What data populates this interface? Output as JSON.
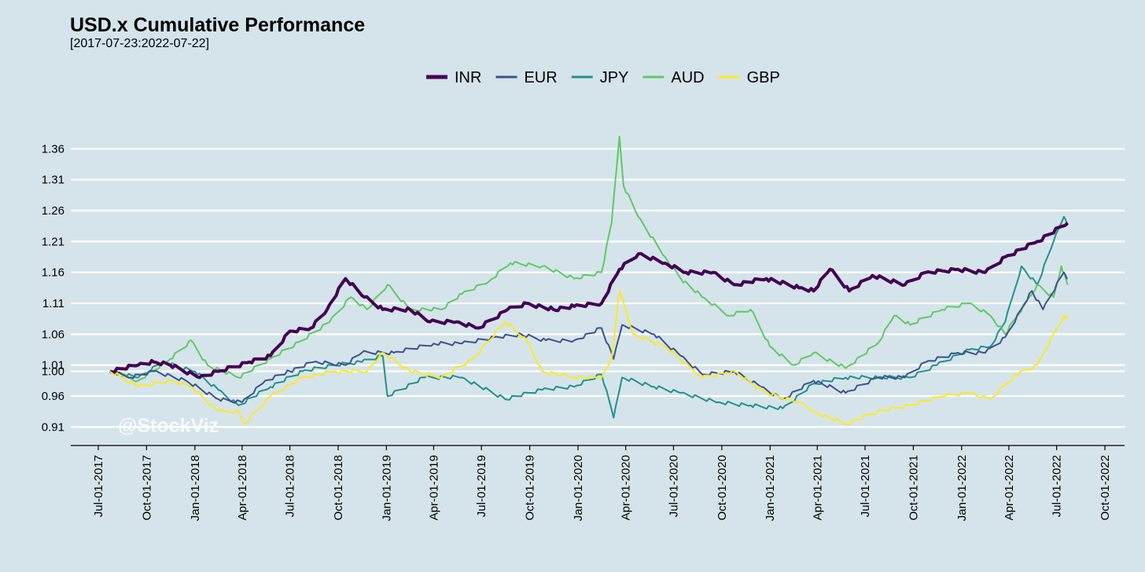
{
  "chart_data": {
    "type": "line",
    "title": "USD.x Cumulative Performance",
    "subtitle": "[2017-07-23:2022-07-22]",
    "watermark": "@StockViz",
    "legend_position": "top",
    "grid": true,
    "ylim": [
      0.88,
      1.41
    ],
    "xlim": [
      "2017-07-01",
      "2022-10-01"
    ],
    "y_ticks": [
      0.91,
      0.96,
      1.0,
      1.01,
      1.06,
      1.11,
      1.16,
      1.21,
      1.26,
      1.31,
      1.36
    ],
    "y_tick_labels": [
      "0.91",
      "0.96",
      "1.00",
      "1.01",
      "1.06",
      "1.11",
      "1.16",
      "1.21",
      "1.26",
      "1.31",
      "1.36"
    ],
    "x_ticks": [
      "2017-07-01",
      "2017-10-01",
      "2018-01-01",
      "2018-04-01",
      "2018-07-01",
      "2018-10-01",
      "2019-01-01",
      "2019-04-01",
      "2019-07-01",
      "2019-10-01",
      "2020-01-01",
      "2020-04-01",
      "2020-07-01",
      "2020-10-01",
      "2021-01-01",
      "2021-04-01",
      "2021-07-01",
      "2021-10-01",
      "2022-01-01",
      "2022-04-01",
      "2022-07-01",
      "2022-10-01"
    ],
    "x_tick_labels": [
      "Jul-01-2017",
      "Oct-01-2017",
      "Jan-01-2018",
      "Apr-01-2018",
      "Jul-01-2018",
      "Oct-01-2018",
      "Jan-01-2019",
      "Apr-01-2019",
      "Jul-01-2019",
      "Oct-01-2019",
      "Jan-01-2020",
      "Apr-01-2020",
      "Jul-01-2020",
      "Oct-01-2020",
      "Jan-01-2021",
      "Apr-01-2021",
      "Jul-01-2021",
      "Oct-01-2021",
      "Jan-01-2022",
      "Apr-01-2022",
      "Jul-01-2022",
      "Oct-01-2022"
    ],
    "series": [
      {
        "name": "INR",
        "color": "#440154",
        "width": 4,
        "points": [
          [
            "2017-07-23",
            1.0
          ],
          [
            "2017-09-15",
            1.01
          ],
          [
            "2017-10-15",
            1.015
          ],
          [
            "2017-11-15",
            1.01
          ],
          [
            "2018-01-10",
            0.99
          ],
          [
            "2018-02-15",
            1.0
          ],
          [
            "2018-04-15",
            1.015
          ],
          [
            "2018-05-25",
            1.025
          ],
          [
            "2018-07-01",
            1.065
          ],
          [
            "2018-08-10",
            1.07
          ],
          [
            "2018-09-10",
            1.1
          ],
          [
            "2018-10-15",
            1.15
          ],
          [
            "2018-11-20",
            1.12
          ],
          [
            "2018-12-25",
            1.1
          ],
          [
            "2019-02-15",
            1.1
          ],
          [
            "2019-03-25",
            1.08
          ],
          [
            "2019-05-15",
            1.08
          ],
          [
            "2019-06-25",
            1.07
          ],
          [
            "2019-08-20",
            1.1
          ],
          [
            "2019-09-25",
            1.11
          ],
          [
            "2019-11-15",
            1.1
          ],
          [
            "2019-12-25",
            1.105
          ],
          [
            "2020-02-15",
            1.11
          ],
          [
            "2020-03-20",
            1.165
          ],
          [
            "2020-04-25",
            1.19
          ],
          [
            "2020-06-15",
            1.175
          ],
          [
            "2020-07-25",
            1.16
          ],
          [
            "2020-09-15",
            1.16
          ],
          [
            "2020-10-25",
            1.14
          ],
          [
            "2020-12-25",
            1.15
          ],
          [
            "2021-02-25",
            1.135
          ],
          [
            "2021-03-25",
            1.13
          ],
          [
            "2021-04-25",
            1.165
          ],
          [
            "2021-06-01",
            1.13
          ],
          [
            "2021-07-15",
            1.155
          ],
          [
            "2021-09-15",
            1.14
          ],
          [
            "2021-10-25",
            1.16
          ],
          [
            "2021-12-25",
            1.165
          ],
          [
            "2022-02-15",
            1.16
          ],
          [
            "2022-03-25",
            1.185
          ],
          [
            "2022-05-25",
            1.21
          ],
          [
            "2022-07-22",
            1.24
          ]
        ]
      },
      {
        "name": "EUR",
        "color": "#3b528b",
        "width": 2,
        "points": [
          [
            "2017-07-23",
            1.0
          ],
          [
            "2017-09-01",
            0.99
          ],
          [
            "2017-10-15",
            1.0
          ],
          [
            "2017-12-15",
            0.985
          ],
          [
            "2018-02-15",
            0.955
          ],
          [
            "2018-04-01",
            0.95
          ],
          [
            "2018-05-15",
            0.985
          ],
          [
            "2018-07-01",
            1.0
          ],
          [
            "2018-08-15",
            1.015
          ],
          [
            "2018-10-15",
            1.01
          ],
          [
            "2018-11-15",
            1.03
          ],
          [
            "2019-01-15",
            1.03
          ],
          [
            "2019-04-01",
            1.045
          ],
          [
            "2019-05-25",
            1.045
          ],
          [
            "2019-07-25",
            1.055
          ],
          [
            "2019-09-15",
            1.06
          ],
          [
            "2019-11-01",
            1.05
          ],
          [
            "2019-12-25",
            1.05
          ],
          [
            "2020-02-15",
            1.07
          ],
          [
            "2020-03-09",
            1.02
          ],
          [
            "2020-03-25",
            1.075
          ],
          [
            "2020-05-25",
            1.06
          ],
          [
            "2020-07-15",
            1.025
          ],
          [
            "2020-08-25",
            0.995
          ],
          [
            "2020-10-25",
            1.0
          ],
          [
            "2020-12-15",
            0.975
          ],
          [
            "2021-01-25",
            0.955
          ],
          [
            "2021-03-25",
            0.985
          ],
          [
            "2021-05-25",
            0.965
          ],
          [
            "2021-07-25",
            0.99
          ],
          [
            "2021-09-15",
            0.99
          ],
          [
            "2021-10-25",
            1.015
          ],
          [
            "2021-12-25",
            1.03
          ],
          [
            "2022-02-15",
            1.03
          ],
          [
            "2022-03-25",
            1.055
          ],
          [
            "2022-05-15",
            1.13
          ],
          [
            "2022-06-05",
            1.1
          ],
          [
            "2022-07-15",
            1.16
          ],
          [
            "2022-07-22",
            1.15
          ]
        ]
      },
      {
        "name": "JPY",
        "color": "#21918c",
        "width": 2,
        "points": [
          [
            "2017-07-23",
            1.0
          ],
          [
            "2017-09-15",
            0.99
          ],
          [
            "2017-11-01",
            1.015
          ],
          [
            "2018-01-01",
            1.0
          ],
          [
            "2018-02-15",
            0.97
          ],
          [
            "2018-03-25",
            0.945
          ],
          [
            "2018-05-25",
            0.975
          ],
          [
            "2018-07-25",
            1.0
          ],
          [
            "2018-09-25",
            1.01
          ],
          [
            "2018-11-15",
            1.015
          ],
          [
            "2018-12-25",
            1.025
          ],
          [
            "2019-01-03",
            0.96
          ],
          [
            "2019-03-15",
            0.99
          ],
          [
            "2019-05-25",
            0.99
          ],
          [
            "2019-08-15",
            0.955
          ],
          [
            "2019-10-25",
            0.97
          ],
          [
            "2019-12-25",
            0.975
          ],
          [
            "2020-02-15",
            0.995
          ],
          [
            "2020-03-09",
            0.925
          ],
          [
            "2020-03-25",
            0.99
          ],
          [
            "2020-05-25",
            0.975
          ],
          [
            "2020-07-15",
            0.965
          ],
          [
            "2020-09-25",
            0.95
          ],
          [
            "2020-11-25",
            0.945
          ],
          [
            "2021-01-25",
            0.94
          ],
          [
            "2021-03-25",
            0.98
          ],
          [
            "2021-05-25",
            0.99
          ],
          [
            "2021-07-25",
            0.99
          ],
          [
            "2021-09-25",
            0.99
          ],
          [
            "2021-11-15",
            1.01
          ],
          [
            "2022-01-15",
            1.035
          ],
          [
            "2022-02-25",
            1.04
          ],
          [
            "2022-03-25",
            1.08
          ],
          [
            "2022-04-25",
            1.17
          ],
          [
            "2022-05-25",
            1.14
          ],
          [
            "2022-06-25",
            1.21
          ],
          [
            "2022-07-15",
            1.25
          ],
          [
            "2022-07-22",
            1.24
          ]
        ]
      },
      {
        "name": "AUD",
        "color": "#5ec962",
        "width": 2,
        "points": [
          [
            "2017-07-23",
            1.0
          ],
          [
            "2017-09-15",
            0.985
          ],
          [
            "2017-11-15",
            1.02
          ],
          [
            "2017-12-25",
            1.05
          ],
          [
            "2018-01-25",
            1.01
          ],
          [
            "2018-03-25",
            0.99
          ],
          [
            "2018-05-25",
            1.02
          ],
          [
            "2018-07-25",
            1.05
          ],
          [
            "2018-09-15",
            1.08
          ],
          [
            "2018-10-25",
            1.12
          ],
          [
            "2018-11-25",
            1.1
          ],
          [
            "2019-01-03",
            1.14
          ],
          [
            "2019-02-15",
            1.1
          ],
          [
            "2019-04-15",
            1.1
          ],
          [
            "2019-05-25",
            1.125
          ],
          [
            "2019-07-15",
            1.145
          ],
          [
            "2019-08-25",
            1.175
          ],
          [
            "2019-10-25",
            1.17
          ],
          [
            "2019-12-25",
            1.15
          ],
          [
            "2020-02-15",
            1.16
          ],
          [
            "2020-03-05",
            1.24
          ],
          [
            "2020-03-20",
            1.38
          ],
          [
            "2020-03-28",
            1.3
          ],
          [
            "2020-04-25",
            1.25
          ],
          [
            "2020-06-15",
            1.185
          ],
          [
            "2020-07-15",
            1.15
          ],
          [
            "2020-08-25",
            1.12
          ],
          [
            "2020-10-15",
            1.09
          ],
          [
            "2020-11-25",
            1.1
          ],
          [
            "2021-01-01",
            1.04
          ],
          [
            "2021-02-15",
            1.01
          ],
          [
            "2021-03-25",
            1.03
          ],
          [
            "2021-05-25",
            1.005
          ],
          [
            "2021-07-25",
            1.045
          ],
          [
            "2021-08-25",
            1.09
          ],
          [
            "2021-09-25",
            1.075
          ],
          [
            "2021-11-25",
            1.1
          ],
          [
            "2022-01-15",
            1.11
          ],
          [
            "2022-02-25",
            1.09
          ],
          [
            "2022-03-25",
            1.06
          ],
          [
            "2022-05-25",
            1.14
          ],
          [
            "2022-06-25",
            1.12
          ],
          [
            "2022-07-10",
            1.17
          ],
          [
            "2022-07-22",
            1.14
          ]
        ]
      },
      {
        "name": "GBP",
        "color": "#fde725",
        "width": 2,
        "points": [
          [
            "2017-07-23",
            1.0
          ],
          [
            "2017-09-15",
            0.975
          ],
          [
            "2017-11-15",
            0.985
          ],
          [
            "2017-12-25",
            0.975
          ],
          [
            "2018-02-15",
            0.935
          ],
          [
            "2018-03-25",
            0.935
          ],
          [
            "2018-04-05",
            0.915
          ],
          [
            "2018-05-25",
            0.96
          ],
          [
            "2018-07-25",
            0.99
          ],
          [
            "2018-09-25",
            1.0
          ],
          [
            "2018-11-25",
            1.0
          ],
          [
            "2018-12-25",
            1.03
          ],
          [
            "2019-02-15",
            1.0
          ],
          [
            "2019-04-15",
            0.99
          ],
          [
            "2019-06-15",
            1.02
          ],
          [
            "2019-08-15",
            1.08
          ],
          [
            "2019-09-25",
            1.05
          ],
          [
            "2019-10-25",
            1.0
          ],
          [
            "2019-12-25",
            0.99
          ],
          [
            "2020-02-15",
            0.99
          ],
          [
            "2020-03-05",
            1.02
          ],
          [
            "2020-03-20",
            1.13
          ],
          [
            "2020-04-15",
            1.06
          ],
          [
            "2020-06-15",
            1.04
          ],
          [
            "2020-08-25",
            0.99
          ],
          [
            "2020-10-25",
            1.0
          ],
          [
            "2020-12-25",
            0.965
          ],
          [
            "2021-02-25",
            0.95
          ],
          [
            "2021-03-25",
            0.935
          ],
          [
            "2021-05-25",
            0.915
          ],
          [
            "2021-07-25",
            0.935
          ],
          [
            "2021-09-25",
            0.945
          ],
          [
            "2021-11-25",
            0.96
          ],
          [
            "2022-01-15",
            0.965
          ],
          [
            "2022-02-25",
            0.955
          ],
          [
            "2022-04-15",
            0.995
          ],
          [
            "2022-05-25",
            1.01
          ],
          [
            "2022-06-25",
            1.06
          ],
          [
            "2022-07-15",
            1.09
          ],
          [
            "2022-07-22",
            1.085
          ]
        ]
      }
    ]
  }
}
